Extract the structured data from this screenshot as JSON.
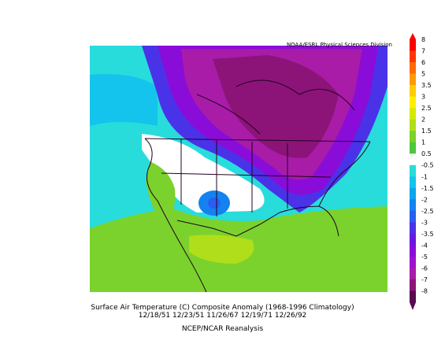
{
  "credit": "NOAA/ESRL Physical Sciences Division",
  "caption": {
    "line1": "Surface Air Temperature (C) Composite Anomaly (1968-1996 Climatology)",
    "line2": "12/18/51 12/23/51 11/26/67 12/19/71 12/26/92",
    "line3": "NCEP/NCAR Reanalysis"
  },
  "colorbar": {
    "levels": [
      {
        "label": "8",
        "color": "#ff0000"
      },
      {
        "label": "7",
        "color": "#ff3800"
      },
      {
        "label": "6",
        "color": "#ff6a00"
      },
      {
        "label": "5",
        "color": "#ff9a00"
      },
      {
        "label": "3.5",
        "color": "#ffcc00"
      },
      {
        "label": "3",
        "color": "#ffee00"
      },
      {
        "label": "2.5",
        "color": "#d6ea00"
      },
      {
        "label": "2",
        "color": "#b0de1a"
      },
      {
        "label": "1.5",
        "color": "#7bd22c"
      },
      {
        "label": "1",
        "color": "#4cc83c"
      },
      {
        "label": "0.5",
        "color": "#ffffff"
      },
      {
        "label": "-0.5",
        "color": "#28dcdc"
      },
      {
        "label": "-1",
        "color": "#14c4ec"
      },
      {
        "label": "-1.5",
        "color": "#0aa6f0"
      },
      {
        "label": "-2",
        "color": "#1482f0"
      },
      {
        "label": "-2.5",
        "color": "#2a5ef0"
      },
      {
        "label": "-3",
        "color": "#4a32e8"
      },
      {
        "label": "-3.5",
        "color": "#6a18e0"
      },
      {
        "label": "-4",
        "color": "#8a0cd8"
      },
      {
        "label": "-5",
        "color": "#a010d0"
      },
      {
        "label": "-6",
        "color": "#a81ca8"
      },
      {
        "label": "-7",
        "color": "#8c1478"
      },
      {
        "label": "-8",
        "color": "#5a0a4e"
      }
    ]
  }
}
